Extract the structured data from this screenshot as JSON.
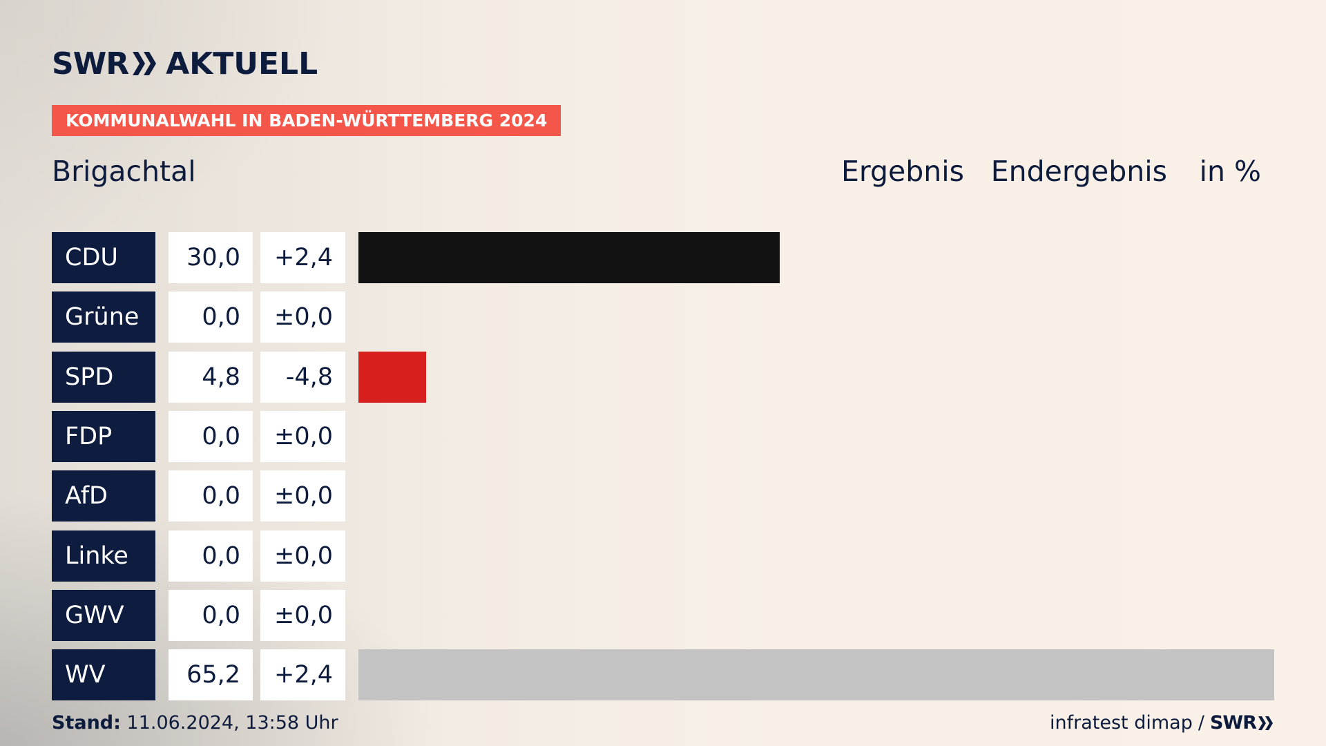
{
  "header": {
    "logo_brand": "SWR",
    "logo_product": "AKTUELL",
    "banner": "KOMMUNALWAHL IN BADEN-WÜRTTEMBERG 2024",
    "place": "Brigachtal",
    "col_result": "Ergebnis",
    "col_status": "Endergebnis",
    "col_unit": "in %"
  },
  "footer": {
    "stand_label": "Stand:",
    "stand_value": "11.06.2024, 13:58 Uhr",
    "source": "infratest dimap",
    "separator": "/",
    "source_brand": "SWR"
  },
  "colors": {
    "CDU": "#121212",
    "Grüne": "#46962b",
    "SPD": "#d7201e",
    "FDP": "#f5d000",
    "AfD": "#009ee0",
    "Linke": "#be3075",
    "GWV": "#c3c3c3",
    "WV": "#c3c3c3"
  },
  "chart_data": {
    "type": "bar",
    "orientation": "horizontal",
    "categories": [
      "CDU",
      "Grüne",
      "SPD",
      "FDP",
      "AfD",
      "Linke",
      "GWV",
      "WV"
    ],
    "values": [
      30.0,
      0.0,
      4.8,
      0.0,
      0.0,
      0.0,
      0.0,
      65.2
    ],
    "values_label": [
      "30,0",
      "0,0",
      "4,8",
      "0,0",
      "0,0",
      "0,0",
      "0,0",
      "65,2"
    ],
    "diff": [
      2.4,
      0.0,
      -4.8,
      0.0,
      0.0,
      0.0,
      0.0,
      2.4
    ],
    "diff_label": [
      "+2,4",
      "±0,0",
      "-4,8",
      "±0,0",
      "±0,0",
      "±0,0",
      "±0,0",
      "+2,4"
    ],
    "xlim": [
      0,
      65.2
    ],
    "grid": false,
    "legend": "none"
  }
}
